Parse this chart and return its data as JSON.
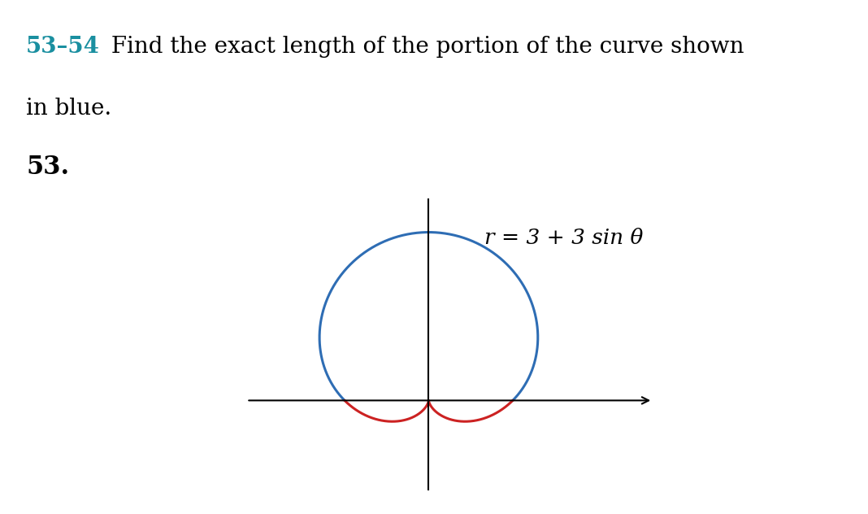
{
  "title_number": "53–54",
  "title_text": " Find the exact length of the portion of the curve shown\nin blue.",
  "problem_number": "53.",
  "equation": "r = 3 + 3 sin θ",
  "title_number_color": "#1a8fa0",
  "blue_color": "#2e6db4",
  "red_color": "#cc2222",
  "axis_color": "#000000",
  "background_color": "#ffffff",
  "r_amplitude": 3,
  "figsize": [
    10.68,
    6.32
  ],
  "dpi": 100
}
